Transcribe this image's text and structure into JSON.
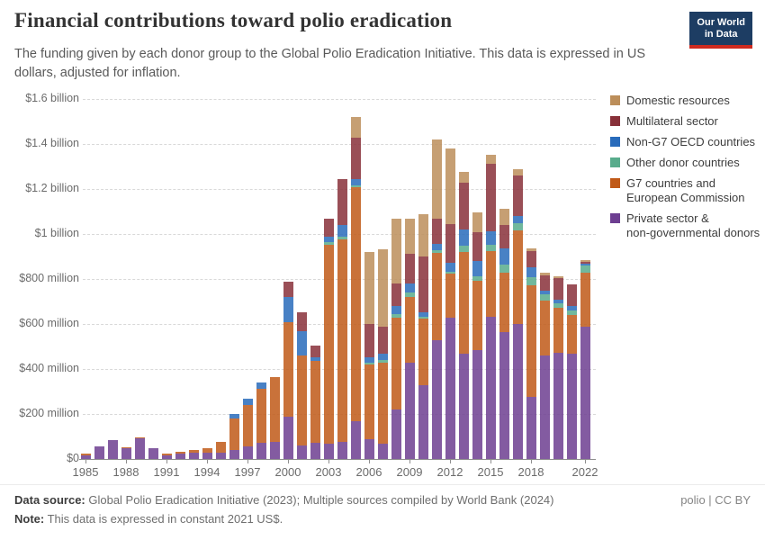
{
  "header": {
    "title": "Financial contributions toward polio eradication",
    "subtitle": "The funding given by each donor group to the Global Polio Eradication Initiative. This data is expressed in US dollars, adjusted for inflation.",
    "logo_line1": "Our World",
    "logo_line2": "in Data",
    "logo_bg": "#1D3D63",
    "logo_accent": "#CE2A1F"
  },
  "chart_data": {
    "type": "bar",
    "stacked": true,
    "unit": "US$ millions (constant 2021 US$)",
    "ylim": [
      0,
      1600
    ],
    "grid": "dashed-horizontal",
    "legend_position": "right",
    "x": [
      1985,
      1986,
      1987,
      1988,
      1989,
      1990,
      1991,
      1992,
      1993,
      1994,
      1995,
      1996,
      1997,
      1998,
      1999,
      2000,
      2001,
      2002,
      2003,
      2004,
      2005,
      2006,
      2007,
      2008,
      2009,
      2010,
      2011,
      2012,
      2013,
      2014,
      2015,
      2016,
      2017,
      2018,
      2019,
      2020,
      2021,
      2022
    ],
    "series": [
      {
        "key": "private",
        "name": "Private sector & non-governmental donors",
        "color": "#6D3E91",
        "values": [
          18,
          57,
          84,
          48,
          92,
          47,
          17,
          25,
          30,
          27,
          27,
          40,
          56,
          72,
          75,
          190,
          60,
          73,
          68,
          77,
          168,
          87,
          67,
          220,
          429,
          330,
          527,
          629,
          467,
          483,
          633,
          564,
          600,
          275,
          460,
          474,
          467,
          587
        ]
      },
      {
        "key": "g7",
        "name": "G7 countries and European Commission",
        "color": "#C05917",
        "values": [
          5,
          0,
          0,
          5,
          6,
          0,
          7,
          8,
          10,
          20,
          49,
          140,
          186,
          240,
          288,
          420,
          400,
          365,
          886,
          900,
          1040,
          333,
          360,
          409,
          290,
          294,
          390,
          195,
          453,
          310,
          293,
          263,
          416,
          497,
          245,
          200,
          173,
          240
        ]
      },
      {
        "key": "other",
        "name": "Other donor countries",
        "color": "#58AC8C",
        "values": [
          0,
          0,
          0,
          0,
          0,
          0,
          0,
          0,
          0,
          0,
          0,
          0,
          0,
          0,
          0,
          0,
          0,
          0,
          12,
          12,
          8,
          8,
          13,
          17,
          20,
          10,
          12,
          9,
          27,
          20,
          27,
          37,
          32,
          35,
          28,
          18,
          20,
          32
        ]
      },
      {
        "key": "nong7",
        "name": "Non-G7 OECD countries",
        "color": "#286BBB",
        "values": [
          0,
          0,
          0,
          0,
          0,
          0,
          0,
          0,
          0,
          0,
          0,
          20,
          28,
          28,
          0,
          110,
          108,
          15,
          22,
          51,
          28,
          25,
          27,
          33,
          40,
          20,
          26,
          40,
          73,
          67,
          60,
          72,
          32,
          45,
          16,
          18,
          20,
          8
        ]
      },
      {
        "key": "multilateral",
        "name": "Multilateral sector",
        "color": "#883039",
        "values": [
          0,
          0,
          0,
          0,
          0,
          0,
          0,
          0,
          0,
          0,
          0,
          0,
          0,
          0,
          0,
          68,
          85,
          50,
          80,
          203,
          183,
          147,
          120,
          100,
          133,
          247,
          112,
          173,
          207,
          127,
          300,
          104,
          180,
          72,
          67,
          95,
          97,
          8
        ]
      },
      {
        "key": "domestic",
        "name": "Domestic resources",
        "color": "#BC8E5A",
        "values": [
          0,
          0,
          0,
          0,
          0,
          0,
          0,
          0,
          0,
          0,
          0,
          0,
          0,
          0,
          0,
          0,
          0,
          0,
          0,
          0,
          93,
          320,
          347,
          291,
          157,
          187,
          354,
          333,
          50,
          90,
          40,
          73,
          27,
          12,
          12,
          8,
          0,
          8
        ]
      }
    ],
    "legend": [
      {
        "key": "domestic",
        "color": "#BC8E5A",
        "lines": [
          "Domestic resources"
        ]
      },
      {
        "key": "multilateral",
        "color": "#883039",
        "lines": [
          "Multilateral sector"
        ]
      },
      {
        "key": "nong7",
        "color": "#286BBB",
        "lines": [
          "Non-G7 OECD countries"
        ]
      },
      {
        "key": "other",
        "color": "#58AC8C",
        "lines": [
          "Other donor countries"
        ]
      },
      {
        "key": "g7",
        "color": "#C05917",
        "lines": [
          "G7 countries and",
          "European Commission"
        ]
      },
      {
        "key": "private",
        "color": "#6D3E91",
        "lines": [
          "Private sector &",
          "non-governmental donors"
        ]
      }
    ],
    "yticks": [
      {
        "value": 0,
        "label": "$0"
      },
      {
        "value": 200,
        "label": "$200 million"
      },
      {
        "value": 400,
        "label": "$400 million"
      },
      {
        "value": 600,
        "label": "$600 million"
      },
      {
        "value": 800,
        "label": "$800 million"
      },
      {
        "value": 1000,
        "label": "$1 billion"
      },
      {
        "value": 1200,
        "label": "$1.2 billion"
      },
      {
        "value": 1400,
        "label": "$1.4 billion"
      },
      {
        "value": 1600,
        "label": "$1.6 billion"
      }
    ],
    "xticks": [
      1985,
      1988,
      1991,
      1994,
      1997,
      2000,
      2003,
      2006,
      2009,
      2012,
      2015,
      2018,
      2022
    ]
  },
  "footer": {
    "source_label": "Data source:",
    "source_text": " Global Polio Eradication Initiative (2023); Multiple sources compiled by World Bank (2024)",
    "note_label": "Note:",
    "note_text": " This data is expressed in constant 2021 US$.",
    "slug": "polio | CC BY"
  }
}
